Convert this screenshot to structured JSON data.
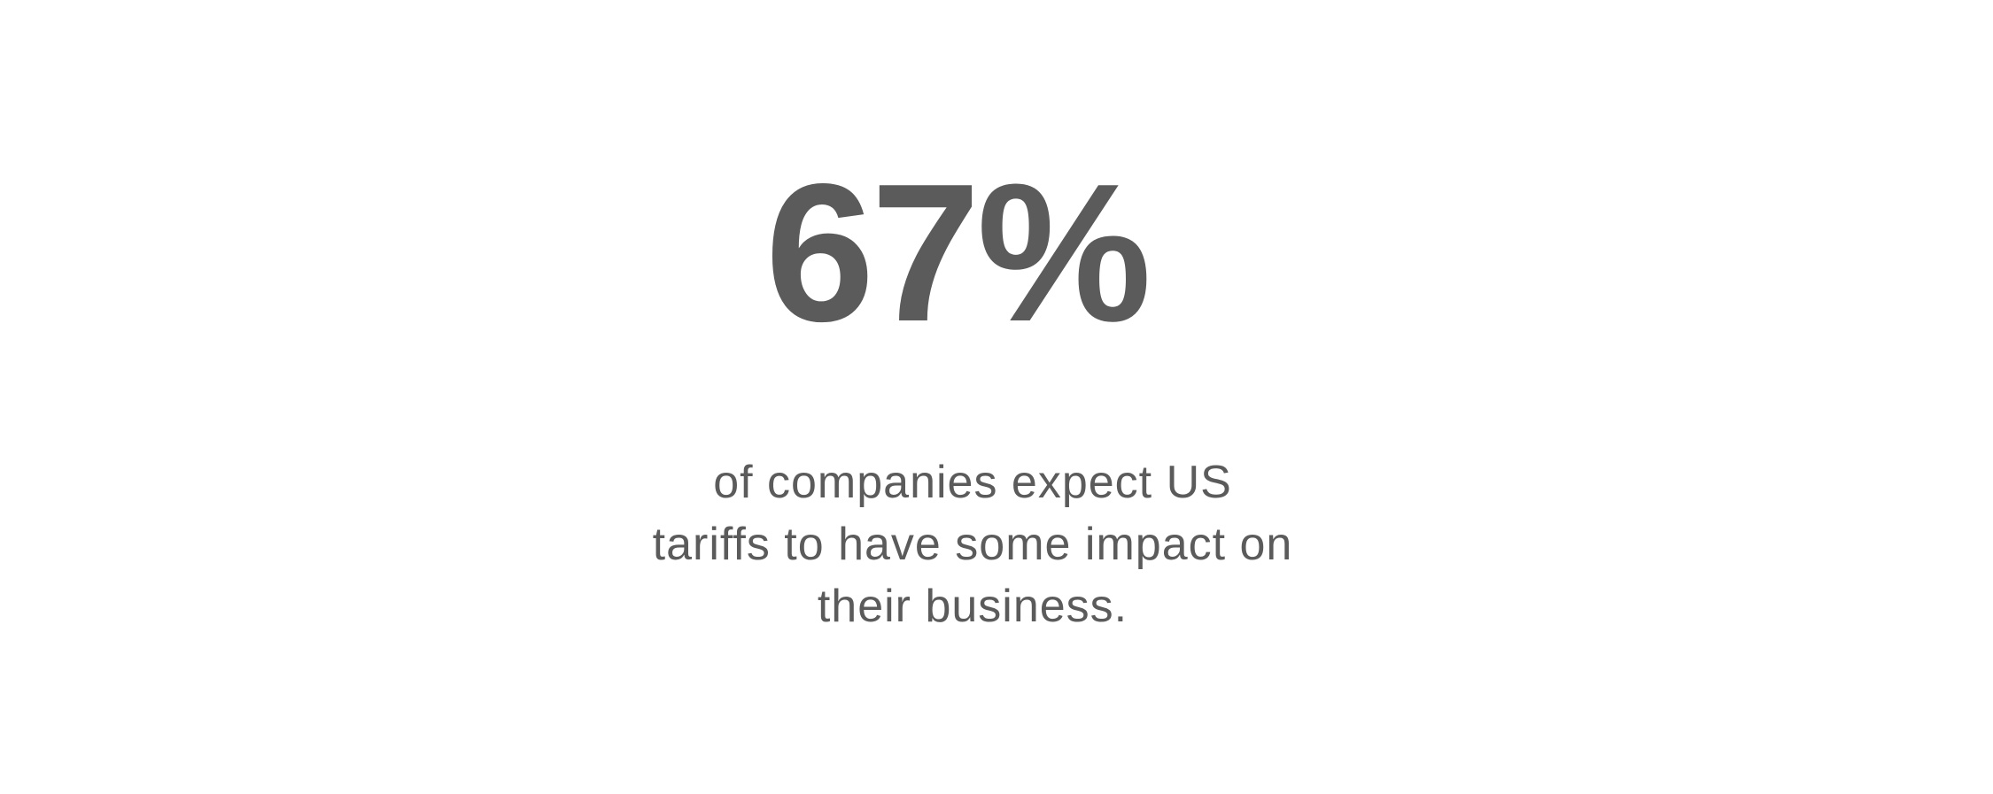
{
  "stat": {
    "value": "67%",
    "lines": [
      "of companies expect US",
      "tariffs to have some impact on",
      "their business."
    ]
  }
}
